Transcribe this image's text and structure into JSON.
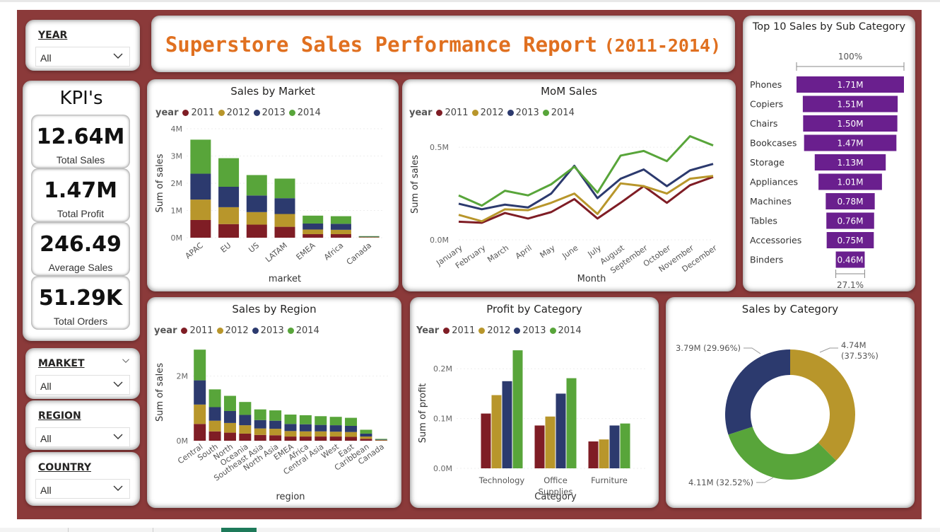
{
  "colors": {
    "y2011": "#7f1d25",
    "y2012": "#b8962b",
    "y2013": "#2c3a6e",
    "y2014": "#58a53a",
    "purple": "#6a1f8e",
    "canvas": "#8b3a3a",
    "title": "#e07020"
  },
  "header": {
    "title_main": "Superstore Sales Performance Report",
    "title_years": "(2011-2014)"
  },
  "slicers": {
    "year": {
      "label": "YEAR",
      "value": "All"
    },
    "market": {
      "label": "MARKET",
      "value": "All"
    },
    "region": {
      "label": "REGION",
      "value": "All"
    },
    "country": {
      "label": "COUNTRY",
      "value": "All"
    }
  },
  "kpis": {
    "title": "KPI's",
    "items": [
      {
        "value": "12.64M",
        "label": "Total Sales"
      },
      {
        "value": "1.47M",
        "label": "Total Profit"
      },
      {
        "value": "246.49",
        "label": "Average Sales"
      },
      {
        "value": "51.29K",
        "label": "Total Orders"
      }
    ]
  },
  "legend": {
    "title_lower": "year",
    "title_upper": "Year",
    "years": [
      "2011",
      "2012",
      "2013",
      "2014"
    ]
  },
  "chart_data": [
    {
      "id": "market",
      "type": "bar",
      "stacked": true,
      "title": "Sales by Market",
      "xlabel": "market",
      "ylabel": "Sum of sales",
      "ylim": [
        0,
        4000000
      ],
      "yticks": [
        "0M",
        "1M",
        "2M",
        "3M",
        "4M"
      ],
      "categories": [
        "APAC",
        "EU",
        "US",
        "LATAM",
        "EMEA",
        "Africa",
        "Canada"
      ],
      "series": [
        {
          "name": "2011",
          "values": [
            650000,
            500000,
            480000,
            400000,
            130000,
            130000,
            10000
          ]
        },
        {
          "name": "2012",
          "values": [
            750000,
            620000,
            460000,
            470000,
            170000,
            160000,
            13000
          ]
        },
        {
          "name": "2013",
          "values": [
            950000,
            750000,
            610000,
            580000,
            220000,
            220000,
            15000
          ]
        },
        {
          "name": "2014",
          "values": [
            1250000,
            1050000,
            750000,
            720000,
            290000,
            280000,
            20000
          ]
        }
      ]
    },
    {
      "id": "mom",
      "type": "line",
      "title": "MoM Sales",
      "xlabel": "Month",
      "ylabel": "Sum of sales",
      "ylim": [
        0,
        600000
      ],
      "yticks": [
        "0.0M",
        "0.5M"
      ],
      "categories": [
        "January",
        "February",
        "March",
        "April",
        "May",
        "June",
        "July",
        "August",
        "September",
        "October",
        "November",
        "December"
      ],
      "series": [
        {
          "name": "2011",
          "values": [
            98000,
            92000,
            145000,
            115000,
            150000,
            220000,
            115000,
            200000,
            290000,
            200000,
            295000,
            340000
          ]
        },
        {
          "name": "2012",
          "values": [
            135000,
            100000,
            165000,
            160000,
            200000,
            250000,
            140000,
            305000,
            290000,
            250000,
            330000,
            345000
          ]
        },
        {
          "name": "2013",
          "values": [
            195000,
            165000,
            190000,
            175000,
            250000,
            400000,
            225000,
            330000,
            380000,
            290000,
            375000,
            410000
          ]
        },
        {
          "name": "2014",
          "values": [
            240000,
            185000,
            265000,
            240000,
            300000,
            395000,
            255000,
            455000,
            480000,
            425000,
            560000,
            510000
          ]
        }
      ]
    },
    {
      "id": "top10",
      "type": "bar",
      "orientation": "horizontal",
      "title": "Top 10 Sales by Sub Category",
      "top_label": "100%",
      "bottom_label": "27.1%",
      "categories": [
        "Phones",
        "Copiers",
        "Chairs",
        "Bookcases",
        "Storage",
        "Appliances",
        "Machines",
        "Tables",
        "Accessories",
        "Binders"
      ],
      "values": [
        1710000,
        1510000,
        1500000,
        1470000,
        1130000,
        1010000,
        780000,
        760000,
        750000,
        460000
      ],
      "labels": [
        "1.71M",
        "1.51M",
        "1.50M",
        "1.47M",
        "1.13M",
        "1.01M",
        "0.78M",
        "0.76M",
        "0.75M",
        "0.46M"
      ]
    },
    {
      "id": "region",
      "type": "bar",
      "stacked": true,
      "title": "Sales by Region",
      "xlabel": "region",
      "ylabel": "Sum of sales",
      "ylim": [
        0,
        3000000
      ],
      "yticks": [
        "0M",
        "2M"
      ],
      "ytick_values": [
        0,
        2000000
      ],
      "categories": [
        "Central",
        "South",
        "North",
        "Oceania",
        "Southeast Asia",
        "North Asia",
        "EMEA",
        "Africa",
        "Central Asia",
        "West",
        "East",
        "Caribbean",
        "Canada"
      ],
      "series": [
        {
          "name": "2011",
          "values": [
            520000,
            290000,
            250000,
            220000,
            180000,
            170000,
            130000,
            130000,
            130000,
            130000,
            120000,
            60000,
            10000
          ]
        },
        {
          "name": "2012",
          "values": [
            600000,
            330000,
            300000,
            260000,
            200000,
            200000,
            170000,
            160000,
            160000,
            150000,
            150000,
            70000,
            13000
          ]
        },
        {
          "name": "2013",
          "values": [
            750000,
            420000,
            370000,
            320000,
            260000,
            250000,
            220000,
            220000,
            200000,
            200000,
            190000,
            90000,
            15000
          ]
        },
        {
          "name": "2014",
          "values": [
            950000,
            550000,
            470000,
            400000,
            330000,
            320000,
            290000,
            280000,
            270000,
            260000,
            250000,
            120000,
            20000
          ]
        }
      ]
    },
    {
      "id": "profit",
      "type": "bar",
      "title": "Profit by Category",
      "xlabel": "Category",
      "ylabel": "Sum of profit",
      "ylim": [
        0,
        250000
      ],
      "yticks": [
        "0.0M",
        "0.1M",
        "0.2M"
      ],
      "ytick_values": [
        0,
        100000,
        200000
      ],
      "categories": [
        "Technology",
        "Office Supplies",
        "Furniture"
      ],
      "series": [
        {
          "name": "2011",
          "values": [
            110000,
            86000,
            54000
          ]
        },
        {
          "name": "2012",
          "values": [
            147000,
            104000,
            58000
          ]
        },
        {
          "name": "2013",
          "values": [
            175000,
            150000,
            86000
          ]
        },
        {
          "name": "2014",
          "values": [
            237000,
            181000,
            90000
          ]
        }
      ]
    },
    {
      "id": "category",
      "type": "pie",
      "donut": true,
      "title": "Sales by Category",
      "slices": [
        {
          "value": 4.74,
          "label": "4.74M",
          "pct": "(37.53%)",
          "color": "#b8962b"
        },
        {
          "value": 4.11,
          "label": "4.11M (32.52%)",
          "color": "#58a53a"
        },
        {
          "value": 3.79,
          "label": "3.79M (29.96%)",
          "color": "#2c3a6e"
        }
      ]
    }
  ]
}
